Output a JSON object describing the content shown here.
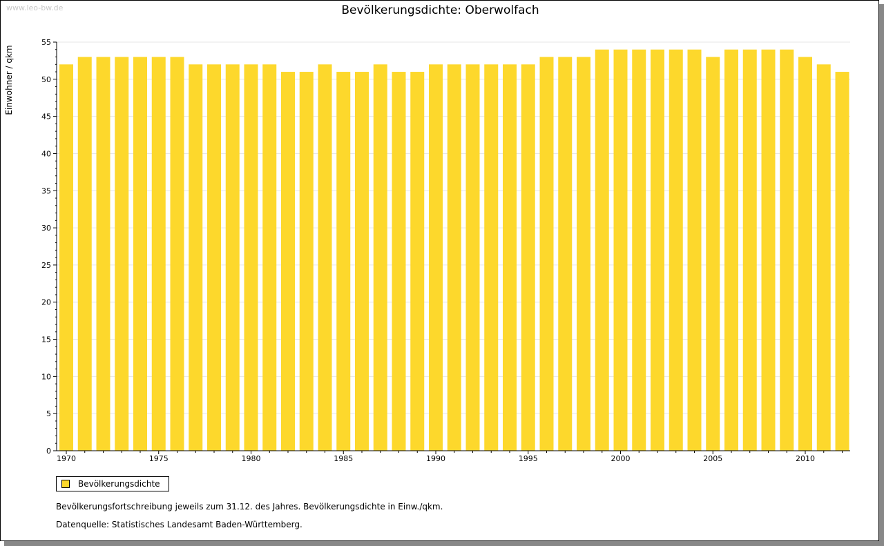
{
  "watermark": "www.leo-bw.de",
  "colors": {
    "bar": "#fdd82c",
    "axis": "#000000",
    "grid": "#e6e6e6"
  },
  "legend": {
    "label": "Bevölkerungsdichte"
  },
  "notes": {
    "line1": "Bevölkerungsfortschreibung jeweils zum 31.12. des Jahres. Bevölkerungsdichte in Einw./qkm.",
    "line2": "Datenquelle: Statistisches Landesamt Baden-Württemberg."
  },
  "chart_data": {
    "type": "bar",
    "title": "Bevölkerungsdichte: Oberwolfach",
    "xlabel": "",
    "ylabel": "Einwohner / qkm",
    "ylim": [
      0,
      55
    ],
    "yticks": [
      0,
      5,
      10,
      15,
      20,
      25,
      30,
      35,
      40,
      45,
      50,
      55
    ],
    "xtick_labels": [
      "1970",
      "1975",
      "1980",
      "1985",
      "1990",
      "1995",
      "2000",
      "2005",
      "2010"
    ],
    "grid": true,
    "legend_position": "bottom-left",
    "categories": [
      1970,
      1971,
      1972,
      1973,
      1974,
      1975,
      1976,
      1977,
      1978,
      1979,
      1980,
      1981,
      1982,
      1983,
      1984,
      1985,
      1986,
      1987,
      1988,
      1989,
      1990,
      1991,
      1992,
      1993,
      1994,
      1995,
      1996,
      1997,
      1998,
      1999,
      2000,
      2001,
      2002,
      2003,
      2004,
      2005,
      2006,
      2007,
      2008,
      2009,
      2010,
      2011,
      2012
    ],
    "series": [
      {
        "name": "Bevölkerungsdichte",
        "values": [
          52,
          53,
          53,
          53,
          53,
          53,
          53,
          52,
          52,
          52,
          52,
          52,
          51,
          51,
          52,
          51,
          51,
          52,
          51,
          51,
          52,
          52,
          52,
          52,
          52,
          52,
          53,
          53,
          53,
          54,
          54,
          54,
          54,
          54,
          54,
          53,
          54,
          54,
          54,
          54,
          53,
          52,
          51
        ]
      }
    ]
  }
}
